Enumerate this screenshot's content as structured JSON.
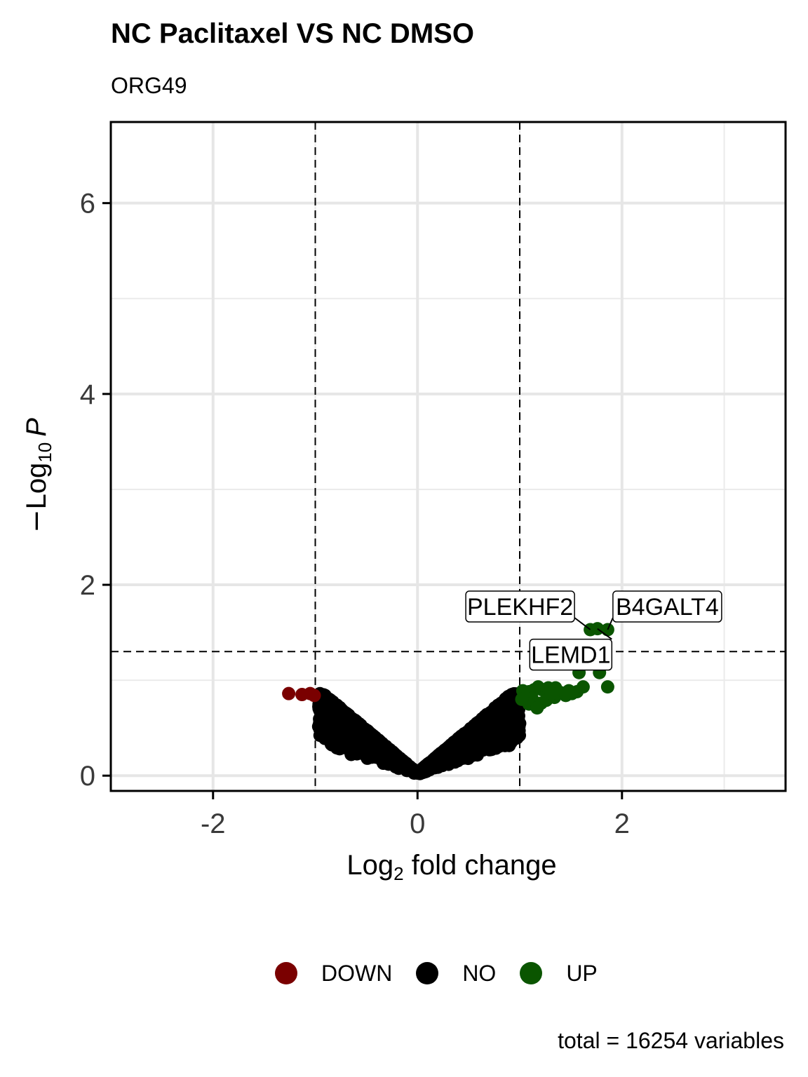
{
  "chart_data": {
    "type": "scatter",
    "title": "NC Paclitaxel VS NC DMSO",
    "subtitle": "ORG49",
    "xlabel": {
      "prefix": "Log",
      "subscript": "2",
      "suffix": " fold change"
    },
    "ylabel": {
      "prefix": "Log",
      "subscript": "10",
      "suffix": "P",
      "negative_sign": "−"
    },
    "xlim": [
      -3,
      3.6
    ],
    "ylim": [
      -0.16,
      6.85
    ],
    "x_ticks": [
      -2,
      0,
      2
    ],
    "x_tick_labels": [
      "-2",
      "0",
      "2"
    ],
    "y_ticks": [
      0,
      2,
      4,
      6
    ],
    "y_tick_labels": [
      "0",
      "2",
      "4",
      "6"
    ],
    "grid": true,
    "fold_change_cutoff": [
      -1,
      1
    ],
    "p_cutoff_neglog10": 1.3,
    "legend": {
      "position": "bottom",
      "entries": [
        {
          "name": "DOWN",
          "color": "#7a0000"
        },
        {
          "name": "NO",
          "color": "#000000"
        },
        {
          "name": "UP",
          "color": "#0a5500"
        }
      ]
    },
    "caption": "total = 16254 variables",
    "series": [
      {
        "name": "DOWN",
        "color": "#7a0000",
        "points": [
          [
            -1.26,
            0.86
          ],
          [
            -1.13,
            0.85
          ],
          [
            -1.05,
            0.86
          ],
          [
            -1.01,
            0.84
          ]
        ]
      },
      {
        "name": "UP",
        "color": "#0a5500",
        "points": [
          [
            1.69,
            1.53
          ],
          [
            1.76,
            1.54
          ],
          [
            1.86,
            1.53
          ],
          [
            1.58,
            1.08
          ],
          [
            1.78,
            1.08
          ],
          [
            1.86,
            0.93
          ],
          [
            1.56,
            0.88
          ],
          [
            1.62,
            0.93
          ],
          [
            1.48,
            0.89
          ],
          [
            1.4,
            0.87
          ],
          [
            1.35,
            0.92
          ],
          [
            1.28,
            0.92
          ],
          [
            1.22,
            0.9
          ],
          [
            1.18,
            0.93
          ],
          [
            1.14,
            0.9
          ],
          [
            1.09,
            0.88
          ],
          [
            1.06,
            0.85
          ],
          [
            1.12,
            0.81
          ],
          [
            1.21,
            0.76
          ],
          [
            1.26,
            0.79
          ],
          [
            1.34,
            0.82
          ],
          [
            1.45,
            0.84
          ],
          [
            1.09,
            0.75
          ],
          [
            1.17,
            0.71
          ],
          [
            1.03,
            0.89
          ],
          [
            1.31,
            0.86
          ],
          [
            1.51,
            0.86
          ],
          [
            1.02,
            0.8
          ]
        ]
      }
    ],
    "labeled_points": [
      {
        "label": "PLEKHF2",
        "x": 1.69,
        "y": 1.53
      },
      {
        "label": "B4GALT4",
        "x": 1.86,
        "y": 1.53
      },
      {
        "label": "LEMD1",
        "x": 1.76,
        "y": 1.54
      }
    ],
    "no_group_envelope": {
      "max_abs_log2fc": 1.0,
      "max_neglog10p": 0.86
    }
  }
}
